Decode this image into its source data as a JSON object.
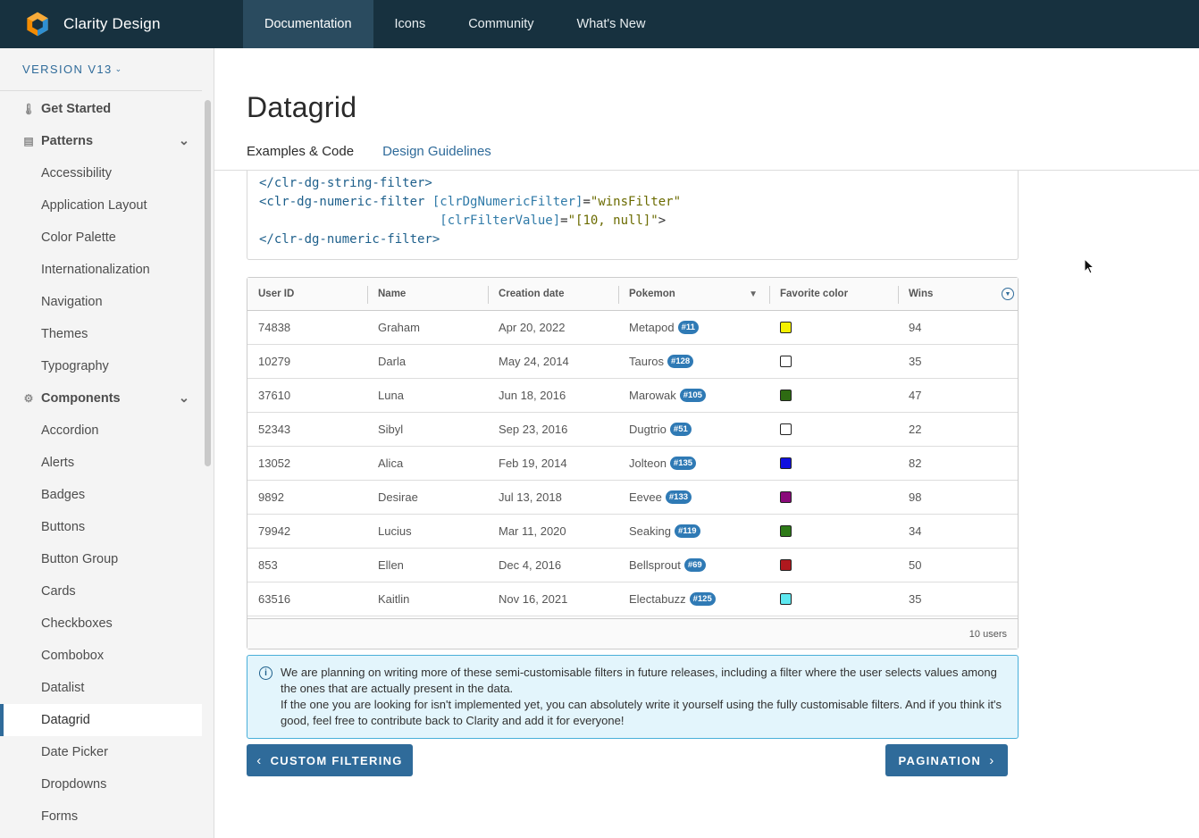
{
  "header": {
    "brand": "Clarity Design",
    "nav": [
      {
        "label": "Documentation",
        "active": true
      },
      {
        "label": "Icons",
        "active": false
      },
      {
        "label": "Community",
        "active": false
      },
      {
        "label": "What's New",
        "active": false
      }
    ]
  },
  "sidebar": {
    "version": "VERSION V13",
    "items": [
      {
        "label": "Get Started",
        "type": "section",
        "icon": "thermometer-icon"
      },
      {
        "label": "Patterns",
        "type": "section",
        "icon": "library-icon",
        "expanded": true
      },
      {
        "label": "Accessibility"
      },
      {
        "label": "Application Layout"
      },
      {
        "label": "Color Palette"
      },
      {
        "label": "Internationalization"
      },
      {
        "label": "Navigation"
      },
      {
        "label": "Themes"
      },
      {
        "label": "Typography"
      },
      {
        "label": "Components",
        "type": "section",
        "icon": "gear-icon",
        "expanded": true
      },
      {
        "label": "Accordion"
      },
      {
        "label": "Alerts"
      },
      {
        "label": "Badges"
      },
      {
        "label": "Buttons"
      },
      {
        "label": "Button Group"
      },
      {
        "label": "Cards"
      },
      {
        "label": "Checkboxes"
      },
      {
        "label": "Combobox"
      },
      {
        "label": "Datalist"
      },
      {
        "label": "Datagrid",
        "active": true
      },
      {
        "label": "Date Picker"
      },
      {
        "label": "Dropdowns"
      },
      {
        "label": "Forms"
      }
    ]
  },
  "page": {
    "title": "Datagrid",
    "tabs": [
      {
        "label": "Examples & Code",
        "current": true
      },
      {
        "label": "Design Guidelines",
        "current": false
      }
    ]
  },
  "code": {
    "line1": "</clr-dg-string-filter>",
    "line2_tag": "<clr-dg-numeric-filter",
    "line2_attr": "[clrDgNumericFilter]",
    "line2_val": "\"winsFilter\"",
    "line3_attr": "[clrFilterValue]",
    "line3_val": "\"[10, null]\"",
    "line4": "</clr-dg-numeric-filter>"
  },
  "datagrid": {
    "columns": [
      "User ID",
      "Name",
      "Creation date",
      "Pokemon",
      "Favorite color",
      "Wins"
    ],
    "rows": [
      {
        "id": "74838",
        "name": "Graham",
        "date": "Apr 20, 2022",
        "pokemon": "Metapod",
        "num": "#11",
        "color": "#f5f000",
        "wins": "94"
      },
      {
        "id": "10279",
        "name": "Darla",
        "date": "May 24, 2014",
        "pokemon": "Tauros",
        "num": "#128",
        "color": "#ffffff",
        "wins": "35"
      },
      {
        "id": "37610",
        "name": "Luna",
        "date": "Jun 18, 2016",
        "pokemon": "Marowak",
        "num": "#105",
        "color": "#2e6b12",
        "wins": "47"
      },
      {
        "id": "52343",
        "name": "Sibyl",
        "date": "Sep 23, 2016",
        "pokemon": "Dugtrio",
        "num": "#51",
        "color": "#ffffff",
        "wins": "22"
      },
      {
        "id": "13052",
        "name": "Alica",
        "date": "Feb 19, 2014",
        "pokemon": "Jolteon",
        "num": "#135",
        "color": "#1010e0",
        "wins": "82"
      },
      {
        "id": "9892",
        "name": "Desirae",
        "date": "Jul 13, 2018",
        "pokemon": "Eevee",
        "num": "#133",
        "color": "#8a0a7a",
        "wins": "98"
      },
      {
        "id": "79942",
        "name": "Lucius",
        "date": "Mar 11, 2020",
        "pokemon": "Seaking",
        "num": "#119",
        "color": "#2e7a18",
        "wins": "34"
      },
      {
        "id": "853",
        "name": "Ellen",
        "date": "Dec 4, 2016",
        "pokemon": "Bellsprout",
        "num": "#69",
        "color": "#b0181e",
        "wins": "50"
      },
      {
        "id": "63516",
        "name": "Kaitlin",
        "date": "Nov 16, 2021",
        "pokemon": "Electabuzz",
        "num": "#125",
        "color": "#5ee8f0",
        "wins": "35"
      }
    ],
    "footer": "10 users"
  },
  "alert": {
    "line1": "We are planning on writing more of these semi-customisable filters in future releases, including a filter where the user selects values among the ones that are actually present in the data.",
    "line2": "If the one you are looking for isn't implemented yet, you can absolutely write it yourself using the fully customisable filters. And if you think it's good, feel free to contribute back to Clarity and add it for everyone!"
  },
  "buttons": {
    "prev": "CUSTOM FILTERING",
    "next": "PAGINATION"
  }
}
